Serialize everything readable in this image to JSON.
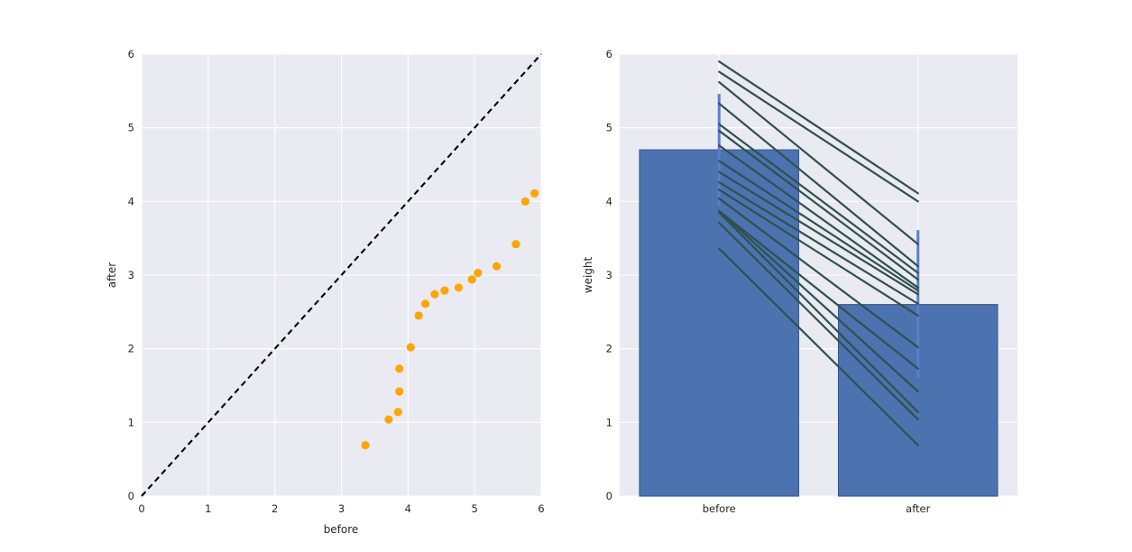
{
  "figure": {
    "background": "#ffffff",
    "axes_background": "#eaeaf2",
    "grid_color": "#ffffff",
    "text_color": "#262626"
  },
  "chart_data": [
    {
      "type": "scatter",
      "title": "",
      "xlabel": "before",
      "ylabel": "after",
      "xlim": [
        0,
        6
      ],
      "ylim": [
        0,
        6
      ],
      "xticks": [
        0,
        1,
        2,
        3,
        4,
        5,
        6
      ],
      "yticks": [
        0,
        1,
        2,
        3,
        4,
        5,
        6
      ],
      "grid": true,
      "legend": false,
      "marker_color": "#ffa500",
      "identity_line": {
        "from": [
          0,
          0
        ],
        "to": [
          6,
          6
        ],
        "style": "dashed",
        "color": "#000000"
      },
      "points": [
        [
          3.36,
          0.69
        ],
        [
          3.71,
          1.04
        ],
        [
          3.85,
          1.14
        ],
        [
          3.87,
          1.42
        ],
        [
          3.87,
          1.73
        ],
        [
          4.04,
          2.02
        ],
        [
          4.16,
          2.45
        ],
        [
          4.26,
          2.61
        ],
        [
          4.4,
          2.74
        ],
        [
          4.55,
          2.79
        ],
        [
          4.76,
          2.83
        ],
        [
          4.96,
          2.94
        ],
        [
          5.05,
          3.03
        ],
        [
          5.33,
          3.12
        ],
        [
          5.62,
          3.42
        ],
        [
          5.76,
          4.0
        ],
        [
          5.9,
          4.11
        ]
      ]
    },
    {
      "type": "bar",
      "title": "",
      "xlabel": "",
      "ylabel": "weight",
      "categories": [
        "before",
        "after"
      ],
      "values": [
        4.7,
        2.6
      ],
      "ci_lower": [
        3.94,
        1.6
      ],
      "ci_upper": [
        5.46,
        3.61
      ],
      "ylim": [
        0,
        6
      ],
      "yticks": [
        0,
        1,
        2,
        3,
        4,
        5,
        6
      ],
      "grid": true,
      "legend": false,
      "bar_color": "#4c72b0",
      "bar_edge_color": "#3d5c8e",
      "errorbar_color": "#5a7ec8",
      "pair_line_color": "#2f514d",
      "pairs": [
        [
          3.36,
          0.69
        ],
        [
          3.71,
          1.04
        ],
        [
          3.85,
          1.14
        ],
        [
          3.87,
          1.42
        ],
        [
          3.87,
          1.73
        ],
        [
          4.04,
          2.02
        ],
        [
          4.16,
          2.45
        ],
        [
          4.26,
          2.61
        ],
        [
          4.4,
          2.74
        ],
        [
          4.55,
          2.79
        ],
        [
          4.76,
          2.83
        ],
        [
          4.96,
          2.94
        ],
        [
          5.05,
          3.03
        ],
        [
          5.33,
          3.12
        ],
        [
          5.62,
          3.42
        ],
        [
          5.76,
          4.0
        ],
        [
          5.9,
          4.11
        ]
      ]
    }
  ]
}
